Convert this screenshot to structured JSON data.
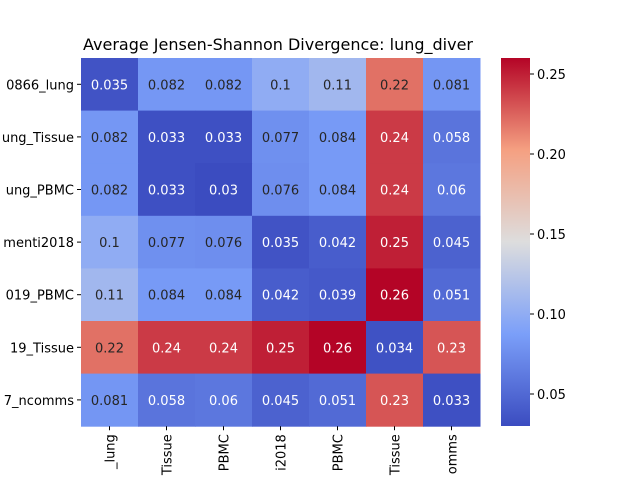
{
  "chart_data": {
    "type": "heatmap",
    "title": "Average Jensen-Shannon Divergence: lung_diver",
    "row_labels": [
      "0866_lung",
      "ung_Tissue",
      "ung_PBMC",
      "menti2018",
      "019_PBMC",
      "19_Tissue",
      "7_ncomms"
    ],
    "col_labels": [
      "_lung",
      "Tissue",
      "PBMC",
      "i2018",
      "PBMC",
      "Tissue",
      "omms"
    ],
    "values": [
      [
        0.035,
        0.082,
        0.082,
        0.1,
        0.11,
        0.22,
        0.081
      ],
      [
        0.082,
        0.033,
        0.033,
        0.077,
        0.084,
        0.24,
        0.058
      ],
      [
        0.082,
        0.033,
        0.03,
        0.076,
        0.084,
        0.24,
        0.06
      ],
      [
        0.1,
        0.077,
        0.076,
        0.035,
        0.042,
        0.25,
        0.045
      ],
      [
        0.11,
        0.084,
        0.084,
        0.042,
        0.039,
        0.26,
        0.051
      ],
      [
        0.22,
        0.24,
        0.24,
        0.25,
        0.26,
        0.034,
        0.23
      ],
      [
        0.081,
        0.058,
        0.06,
        0.045,
        0.051,
        0.23,
        0.033
      ]
    ],
    "colormap": "coolwarm",
    "vmin": 0.03,
    "vmax": 0.26,
    "colorbar_ticks": [
      0.05,
      0.1,
      0.15,
      0.2,
      0.25
    ],
    "colorbar_tick_labels": [
      "0.05",
      "0.10",
      "0.15",
      "0.20",
      "0.25"
    ]
  }
}
